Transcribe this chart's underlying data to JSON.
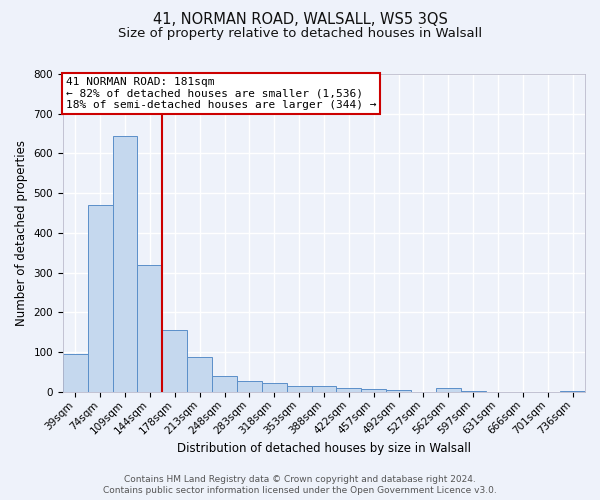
{
  "title": "41, NORMAN ROAD, WALSALL, WS5 3QS",
  "subtitle": "Size of property relative to detached houses in Walsall",
  "xlabel": "Distribution of detached houses by size in Walsall",
  "ylabel": "Number of detached properties",
  "bar_labels": [
    "39sqm",
    "74sqm",
    "109sqm",
    "144sqm",
    "178sqm",
    "213sqm",
    "248sqm",
    "283sqm",
    "318sqm",
    "353sqm",
    "388sqm",
    "422sqm",
    "457sqm",
    "492sqm",
    "527sqm",
    "562sqm",
    "597sqm",
    "631sqm",
    "666sqm",
    "701sqm",
    "736sqm"
  ],
  "bar_values": [
    95,
    470,
    645,
    320,
    155,
    88,
    40,
    27,
    22,
    15,
    15,
    10,
    7,
    5,
    0,
    10,
    2,
    0,
    0,
    0,
    2
  ],
  "bar_color": "#c5d8ee",
  "bar_edgecolor": "#5b8fc9",
  "bar_width": 1.0,
  "vline_index": 4,
  "vline_color": "#cc0000",
  "ylim": [
    0,
    800
  ],
  "yticks": [
    0,
    100,
    200,
    300,
    400,
    500,
    600,
    700,
    800
  ],
  "annotation_line1": "41 NORMAN ROAD: 181sqm",
  "annotation_line2": "← 82% of detached houses are smaller (1,536)",
  "annotation_line3": "18% of semi-detached houses are larger (344) →",
  "annotation_box_facecolor": "#ffffff",
  "annotation_box_edgecolor": "#cc0000",
  "footer_line1": "Contains HM Land Registry data © Crown copyright and database right 2024.",
  "footer_line2": "Contains public sector information licensed under the Open Government Licence v3.0.",
  "background_color": "#eef2fa",
  "grid_color": "#ffffff",
  "title_fontsize": 10.5,
  "subtitle_fontsize": 9.5,
  "axis_label_fontsize": 8.5,
  "tick_fontsize": 7.5,
  "annotation_fontsize": 8,
  "footer_fontsize": 6.5
}
